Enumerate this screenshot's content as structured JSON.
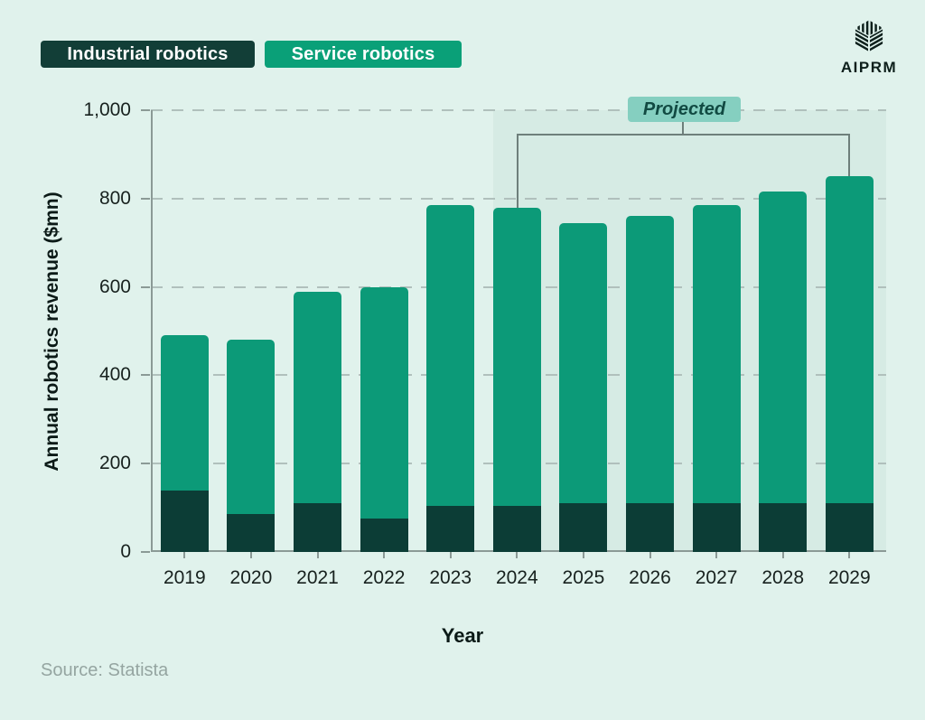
{
  "page": {
    "background": "#e0f2ec"
  },
  "legend": {
    "items": [
      {
        "label": "Industrial robotics",
        "color": "#123e37",
        "text_color": "#ffffff"
      },
      {
        "label": "Service robotics",
        "color": "#0aa078",
        "text_color": "#ffffff"
      }
    ]
  },
  "brand": {
    "name": "AIPRM",
    "icon": "aiprm-cube-logo",
    "color": "#0d1f1b"
  },
  "annotation": {
    "label": "Projected",
    "badge_bg": "#85cfc0",
    "text_color": "#114a42",
    "region_color": "#d6ebe4",
    "bracket_color": "#6e7f7b",
    "start_year": "2024",
    "end_year": "2029"
  },
  "source": {
    "label": "Source:",
    "value": "Statista"
  },
  "chart_data": {
    "type": "bar",
    "stacked": true,
    "title": "",
    "xlabel": "Year",
    "ylabel": "Annual robotics revenue ($mn)",
    "categories": [
      "2019",
      "2020",
      "2021",
      "2022",
      "2023",
      "2024",
      "2025",
      "2026",
      "2027",
      "2028",
      "2029"
    ],
    "series": [
      {
        "name": "Industrial robotics",
        "color": "#0c3d36",
        "values": [
          140,
          85,
          110,
          75,
          105,
          105,
          110,
          110,
          110,
          110,
          110
        ]
      },
      {
        "name": "Service robotics",
        "color": "#0c9a78",
        "values": [
          350,
          395,
          480,
          525,
          680,
          675,
          635,
          650,
          675,
          705,
          740
        ]
      }
    ],
    "totals": [
      490,
      480,
      590,
      600,
      785,
      780,
      745,
      760,
      785,
      815,
      850
    ],
    "ylim": [
      0,
      1000
    ],
    "ytick_values": [
      0,
      200,
      400,
      600,
      800,
      1000
    ],
    "ytick_labels": [
      "0",
      "200",
      "400",
      "600",
      "800",
      "1,000"
    ],
    "grid": "dashed-horizontal",
    "grid_color": "#b0c0bc",
    "axis_color": "#8b9a96",
    "legend_position": "top-left",
    "projected_start_index": 5
  }
}
